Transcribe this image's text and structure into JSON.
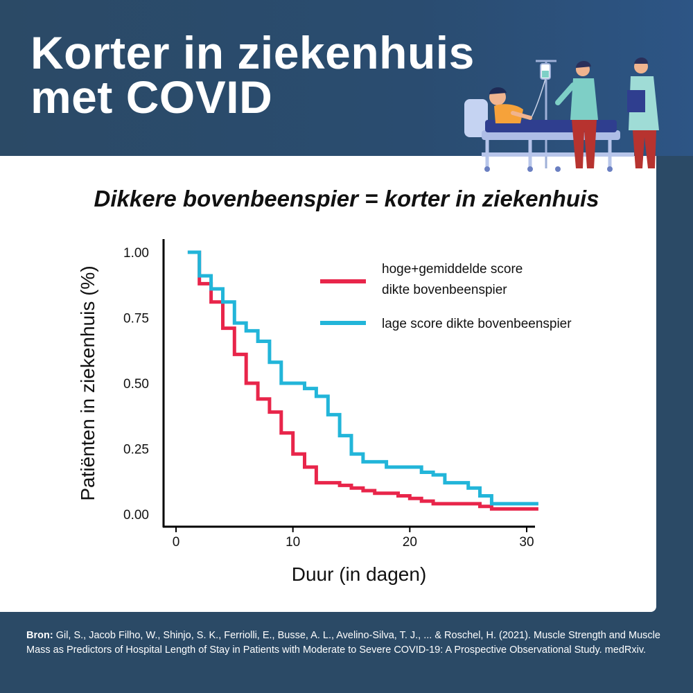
{
  "header": {
    "title_line1": "Korter in ziekenhuis",
    "title_line2": "met COVID"
  },
  "subtitle": "Dikkere bovenbeenspier = korter in ziekenhuis",
  "illustration": {
    "name": "hospital-bed-illustration",
    "colors": {
      "bed": "#c5d3f2",
      "blanket": "#2f3e8f",
      "scrubs": "#7ecfc6",
      "pants": "#b7332f"
    }
  },
  "chart_data": {
    "type": "line",
    "step": true,
    "xlabel": "Duur (in dagen)",
    "ylabel": "Patiënten in ziekenhuis (%)",
    "xlim": [
      0,
      31
    ],
    "ylim": [
      0,
      1.05
    ],
    "x_ticks": [
      0,
      10,
      20,
      30
    ],
    "y_ticks": [
      "0.00",
      "0.25",
      "0.50",
      "0.75",
      "1.00"
    ],
    "legend_position": "top-right",
    "series": [
      {
        "name_line1": "hoge+gemiddelde score",
        "name_line2": "dikte bovenbeenspier",
        "color": "#e8254a",
        "points": [
          [
            1,
            1.0
          ],
          [
            2,
            0.88
          ],
          [
            3,
            0.81
          ],
          [
            4,
            0.71
          ],
          [
            5,
            0.61
          ],
          [
            6,
            0.5
          ],
          [
            7,
            0.44
          ],
          [
            8,
            0.39
          ],
          [
            9,
            0.31
          ],
          [
            10,
            0.23
          ],
          [
            11,
            0.18
          ],
          [
            12,
            0.12
          ],
          [
            14,
            0.11
          ],
          [
            15,
            0.1
          ],
          [
            16,
            0.09
          ],
          [
            17,
            0.08
          ],
          [
            19,
            0.07
          ],
          [
            20,
            0.06
          ],
          [
            21,
            0.05
          ],
          [
            22,
            0.04
          ],
          [
            26,
            0.03
          ],
          [
            27,
            0.02
          ],
          [
            31,
            0.02
          ]
        ]
      },
      {
        "name": "lage score dikte bovenbeenspier",
        "color": "#22b5d9",
        "points": [
          [
            1,
            1.0
          ],
          [
            2,
            0.91
          ],
          [
            3,
            0.86
          ],
          [
            4,
            0.81
          ],
          [
            5,
            0.73
          ],
          [
            6,
            0.7
          ],
          [
            7,
            0.66
          ],
          [
            8,
            0.58
          ],
          [
            9,
            0.5
          ],
          [
            11,
            0.48
          ],
          [
            12,
            0.45
          ],
          [
            13,
            0.38
          ],
          [
            14,
            0.3
          ],
          [
            15,
            0.23
          ],
          [
            16,
            0.2
          ],
          [
            18,
            0.18
          ],
          [
            21,
            0.16
          ],
          [
            22,
            0.15
          ],
          [
            23,
            0.12
          ],
          [
            25,
            0.1
          ],
          [
            26,
            0.07
          ],
          [
            27,
            0.04
          ],
          [
            31,
            0.04
          ]
        ]
      }
    ]
  },
  "footer": {
    "source_label": "Bron:",
    "source_text": " Gil, S., Jacob Filho, W., Shinjo, S. K., Ferriolli, E., Busse, A. L., Avelino-Silva, T. J., ... & Roschel, H. (2021). Muscle Strength and Muscle Mass as Predictors of Hospital Length of Stay in Patients with Moderate to Severe COVID-19: A Prospective Observational Study. medRxiv."
  }
}
